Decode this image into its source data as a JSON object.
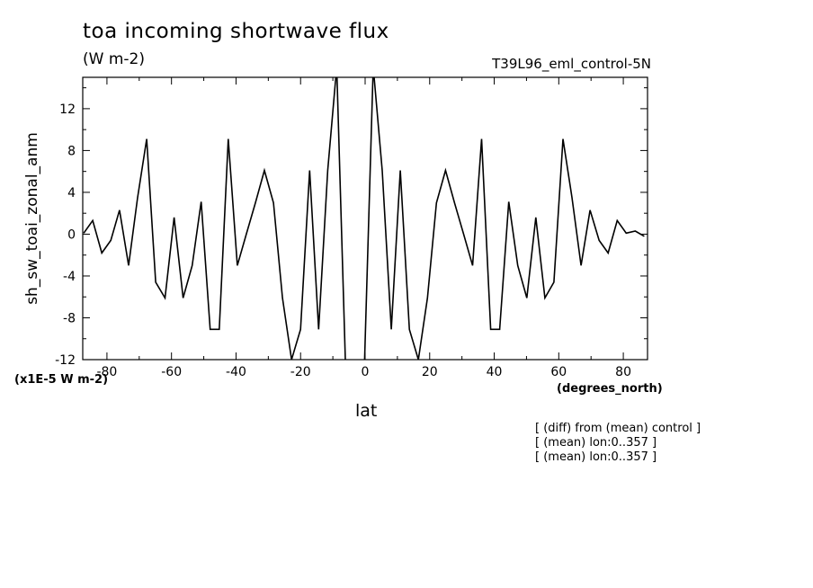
{
  "title": "toa incoming shortwave flux",
  "units": "(W m-2)",
  "run_label": "T39L96_eml_control-5N",
  "scale_note": "(x1E-5 W m-2)",
  "notes": [
    "[ (diff) from (mean) control ]",
    "[ (mean) lon:0..357 ]",
    "[ (mean) lon:0..357 ]"
  ],
  "chart_data": {
    "type": "line",
    "xlabel": "lat",
    "xunits": "(degrees_north)",
    "ylabel": "sh_sw_toai_zonal_anm",
    "xlim": [
      -87.5,
      87.5
    ],
    "ylim": [
      -12,
      15
    ],
    "xticks": [
      -80,
      -60,
      -40,
      -20,
      0,
      20,
      40,
      60,
      80
    ],
    "xtick_labels": [
      "-80",
      "-60",
      "-40",
      "-20",
      "0",
      "20",
      "40",
      "60",
      "80"
    ],
    "yticks": [
      -12,
      -8,
      -4,
      0,
      4,
      8,
      12
    ],
    "ytick_labels": [
      "-12",
      "-8",
      "-4",
      "0",
      "4",
      "8",
      "12"
    ],
    "grid": false,
    "line_color": "#000000",
    "series": [
      {
        "x": [
          -87.2,
          -84.4,
          -81.6,
          -78.8,
          -76.1,
          -73.3,
          -70.5,
          -67.7,
          -64.9,
          -62.0,
          -59.2,
          -56.4,
          -53.6,
          -50.8,
          -48.0,
          -45.2,
          -42.4,
          -39.6,
          -36.8,
          -34.0,
          -31.2,
          -28.4,
          -25.6,
          -22.8,
          -20.0,
          -17.2,
          -14.4,
          -11.6,
          -8.8,
          -6.0,
          -3.1,
          -0.3,
          2.5,
          5.3,
          8.1,
          10.9,
          13.7,
          16.5,
          19.3,
          22.1,
          24.9,
          27.7,
          30.5,
          33.3,
          36.1,
          38.9,
          41.7,
          44.5,
          47.3,
          50.1,
          52.9,
          55.7,
          58.5,
          61.3,
          64.1,
          66.9,
          69.7,
          72.5,
          75.3,
          78.1,
          80.9,
          83.7,
          86.5
        ],
        "y": [
          0.1,
          1.3,
          -1.8,
          -0.6,
          2.3,
          -3.0,
          3.5,
          9.1,
          -4.6,
          -6.1,
          1.6,
          -6.1,
          -3.0,
          3.1,
          -9.1,
          -9.1,
          9.1,
          -3.0,
          0.0,
          3.0,
          6.1,
          3.0,
          -6.1,
          -12.0,
          -9.1,
          6.1,
          -9.1,
          6.1,
          16.0,
          -13.5,
          -16.0,
          -13.5,
          16.0,
          6.1,
          -9.1,
          6.1,
          -9.1,
          -12.0,
          -6.1,
          3.0,
          6.1,
          3.0,
          0.0,
          -3.0,
          9.1,
          -9.1,
          -9.1,
          3.1,
          -3.0,
          -6.1,
          1.6,
          -6.1,
          -4.6,
          9.1,
          3.5,
          -3.0,
          2.3,
          -0.6,
          -1.8,
          1.3,
          0.1,
          0.3,
          -0.2
        ]
      }
    ]
  }
}
